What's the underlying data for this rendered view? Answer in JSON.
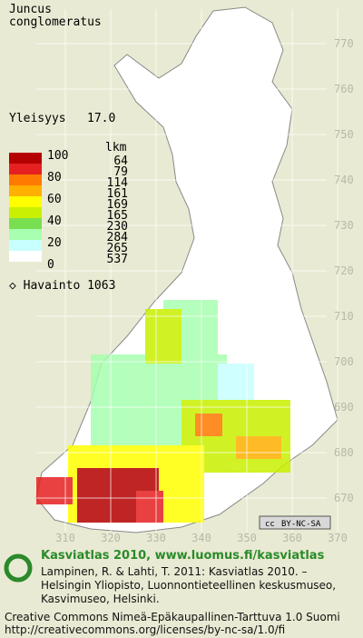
{
  "header": {
    "genus": "Juncus",
    "species": "conglomeratus"
  },
  "frequency": {
    "label": "Yleisyys",
    "value": "17.0"
  },
  "legend": {
    "scale_labels": [
      "100",
      "80",
      "60",
      "40",
      "20",
      "0"
    ],
    "colors": [
      "#b40000",
      "#e62020",
      "#ff7a00",
      "#ffb000",
      "#ffff00",
      "#c8f000",
      "#78e050",
      "#a8ffb0",
      "#c8ffff",
      "#ffffff"
    ],
    "count_header": "lkm",
    "counts": [
      "64",
      "79",
      "114",
      "161",
      "169",
      "165",
      "230",
      "284",
      "265",
      "537"
    ],
    "observation": "Havainto 1063"
  },
  "grid": {
    "y_labels": [
      "770",
      "760",
      "750",
      "740",
      "730",
      "720",
      "710",
      "700",
      "690",
      "680",
      "670"
    ],
    "x_labels": [
      "310",
      "320",
      "330",
      "340",
      "350",
      "360",
      "370"
    ]
  },
  "badge": "BY-NC-SA",
  "footer": {
    "title": "Kasviatlas 2010, www.luomus.fi/kasviatlas",
    "citation": [
      "Lampinen, R. & Lahti, T. 2011: Kasviatlas 2010. –",
      "Helsingin Yliopisto, Luonnontieteellinen keskusmuseo,",
      "Kasvimuseo, Helsinki."
    ],
    "license": [
      "Creative Commons Nimeä-Epäkaupallinen-Tarttuva 1.0 Suomi",
      "http://creativecommons.org/licenses/by-nc-sa/1.0/fi"
    ]
  }
}
